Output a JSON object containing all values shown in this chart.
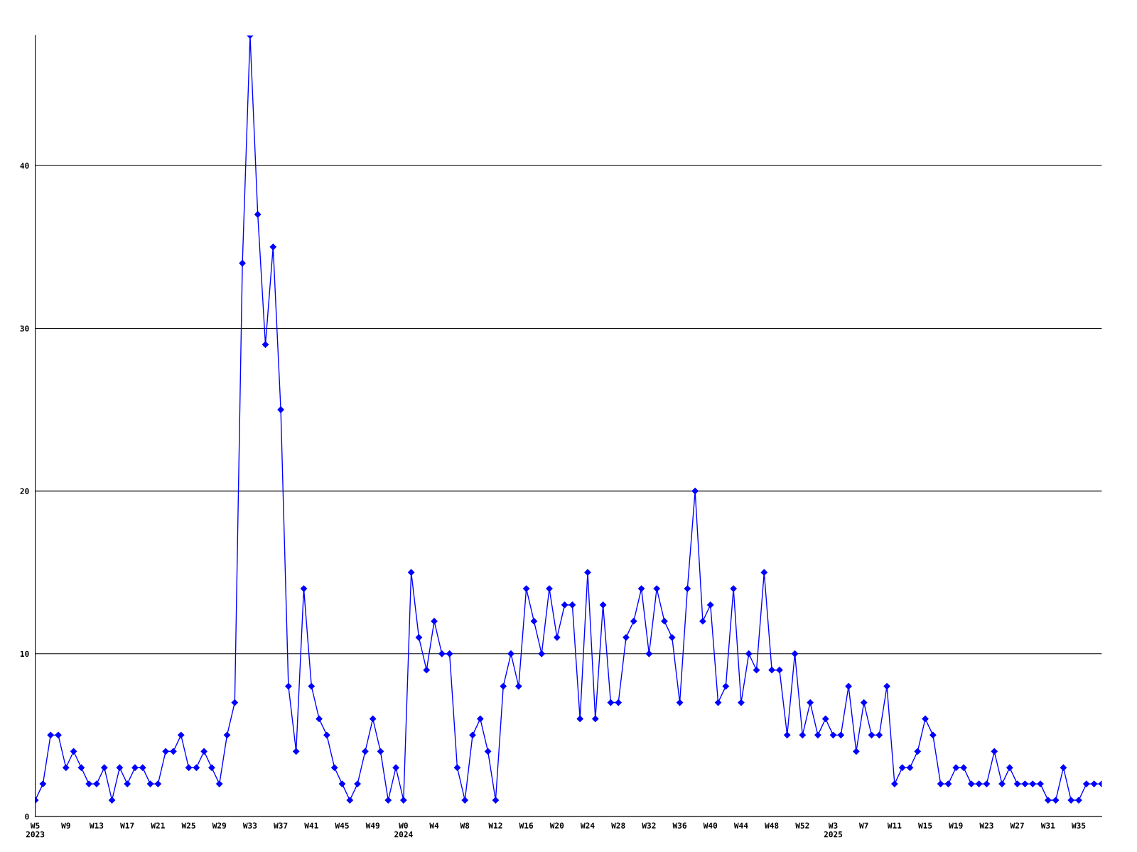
{
  "chart_data": {
    "type": "line",
    "categories": [
      "W5\n2023",
      null,
      null,
      null,
      "W9",
      null,
      null,
      null,
      "W13",
      null,
      null,
      null,
      "W17",
      null,
      null,
      null,
      "W21",
      null,
      null,
      null,
      "W25",
      null,
      null,
      null,
      "W29",
      null,
      null,
      null,
      "W33",
      null,
      null,
      null,
      "W37",
      null,
      null,
      null,
      "W41",
      null,
      null,
      null,
      "W45",
      null,
      null,
      null,
      "W49",
      null,
      null,
      null,
      "W0\n2024",
      null,
      null,
      null,
      "W4",
      null,
      null,
      null,
      "W8",
      null,
      null,
      null,
      "W12",
      null,
      null,
      null,
      "W16",
      null,
      null,
      null,
      "W20",
      null,
      null,
      null,
      "W24",
      null,
      null,
      null,
      "W28",
      null,
      null,
      null,
      "W32",
      null,
      null,
      null,
      "W36",
      null,
      null,
      null,
      "W40",
      null,
      null,
      null,
      "W44",
      null,
      null,
      null,
      "W48",
      null,
      null,
      null,
      "W52",
      null,
      null,
      null,
      "W3\n2025",
      null,
      null,
      null,
      "W7",
      null,
      null,
      null,
      "W11",
      null,
      null,
      null,
      "W15",
      null,
      null,
      null,
      "W19",
      null,
      null,
      null,
      "W23",
      null,
      null,
      null,
      "W27",
      null,
      null,
      null,
      "W31",
      null,
      null,
      null,
      "W35",
      null,
      null,
      null
    ],
    "series": [
      {
        "color": "#0000ff",
        "values": [
          1,
          2,
          5,
          5,
          3,
          4,
          3,
          2,
          2,
          3,
          1,
          3,
          2,
          3,
          3,
          2,
          2,
          4,
          4,
          5,
          3,
          3,
          4,
          3,
          2,
          5,
          7,
          34,
          48,
          37,
          29,
          35,
          25,
          8,
          4,
          14,
          8,
          6,
          5,
          3,
          2,
          1,
          2,
          4,
          6,
          4,
          1,
          3,
          1,
          15,
          11,
          9,
          12,
          10,
          10,
          3,
          1,
          5,
          6,
          4,
          1,
          8,
          10,
          8,
          14,
          12,
          10,
          14,
          11,
          13,
          13,
          6,
          15,
          6,
          13,
          7,
          7,
          11,
          12,
          14,
          10,
          14,
          12,
          11,
          7,
          14,
          20,
          12,
          13,
          7,
          8,
          14,
          7,
          10,
          9,
          15,
          9,
          9,
          5,
          10,
          5,
          7,
          5,
          6,
          5,
          5,
          8,
          4,
          7,
          5,
          5,
          8,
          2,
          3,
          3,
          4,
          6,
          5,
          2,
          2,
          3,
          3,
          2,
          2,
          2,
          4,
          2,
          3,
          2,
          2,
          2,
          2,
          1,
          1,
          3,
          1,
          1,
          2,
          2,
          2
        ]
      }
    ],
    "ylim": [
      0,
      48
    ],
    "yticks": [
      0,
      10,
      20,
      30,
      40
    ],
    "grid": "y",
    "marker": "diamond",
    "line_style": "solid",
    "legend": false
  }
}
